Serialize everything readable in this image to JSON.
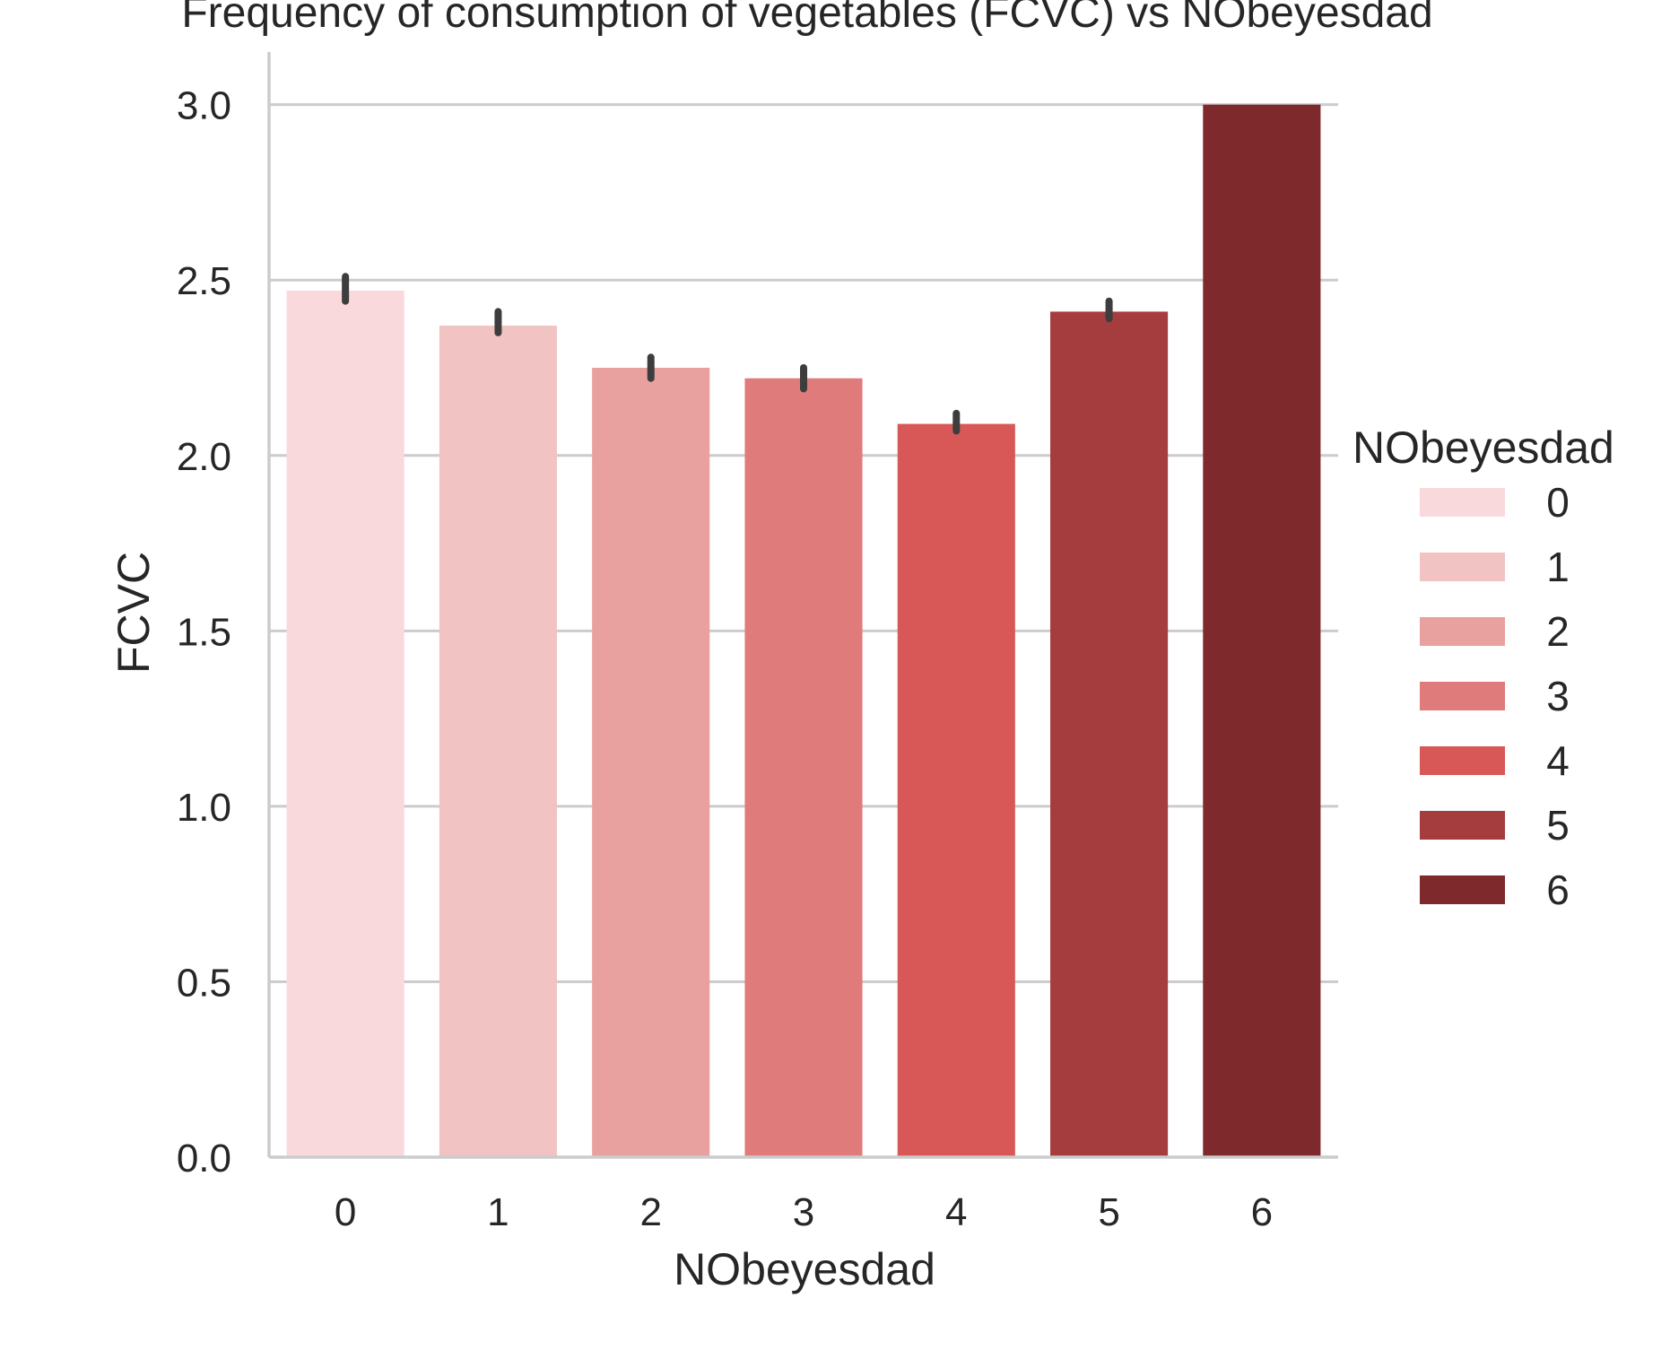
{
  "chart_data": {
    "type": "bar",
    "title": "Frequency of consumption of vegetables (FCVC) vs NObeyesdad",
    "xlabel": "NObeyesdad",
    "ylabel": "FCVC",
    "categories": [
      "0",
      "1",
      "2",
      "3",
      "4",
      "5",
      "6"
    ],
    "values": [
      2.47,
      2.37,
      2.25,
      2.22,
      2.09,
      2.41,
      3.0
    ],
    "error_bars": [
      [
        2.44,
        2.51
      ],
      [
        2.35,
        2.41
      ],
      [
        2.22,
        2.28
      ],
      [
        2.19,
        2.25
      ],
      [
        2.07,
        2.12
      ],
      [
        2.39,
        2.44
      ],
      null
    ],
    "colors": [
      "#f9d9dc",
      "#f2c3c3",
      "#e9a1a0",
      "#e07b7b",
      "#d85858",
      "#a53d3f",
      "#7e2a2c"
    ],
    "ylim": [
      0,
      3.15
    ],
    "yticks": [
      "0.0",
      "0.5",
      "1.0",
      "1.5",
      "2.0",
      "2.5",
      "3.0"
    ],
    "grid": true,
    "legend": {
      "title": "NObeyesdad",
      "placement": "right",
      "entries": [
        "0",
        "1",
        "2",
        "3",
        "4",
        "5",
        "6"
      ]
    }
  }
}
